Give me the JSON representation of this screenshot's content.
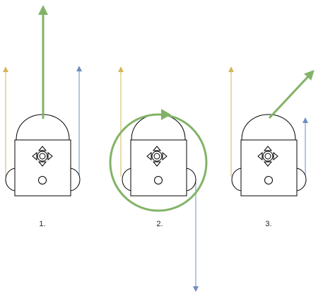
{
  "colors": {
    "left_arrow": "#d6b656",
    "right_arrow": "#6c8ebf",
    "resultant_arrow": "#82b366",
    "outline": "#000000"
  },
  "panels": [
    {
      "caption": "1.",
      "motion": "forward",
      "left_wheel": "forward",
      "right_wheel": "forward",
      "icon": "navigation-icon"
    },
    {
      "caption": "2.",
      "motion": "rotate-in-place",
      "left_wheel": "forward",
      "right_wheel": "backward",
      "icon": "navigation-icon"
    },
    {
      "caption": "3.",
      "motion": "curve-right",
      "left_wheel": "forward",
      "right_wheel": "forward-slower",
      "icon": "navigation-icon"
    }
  ]
}
